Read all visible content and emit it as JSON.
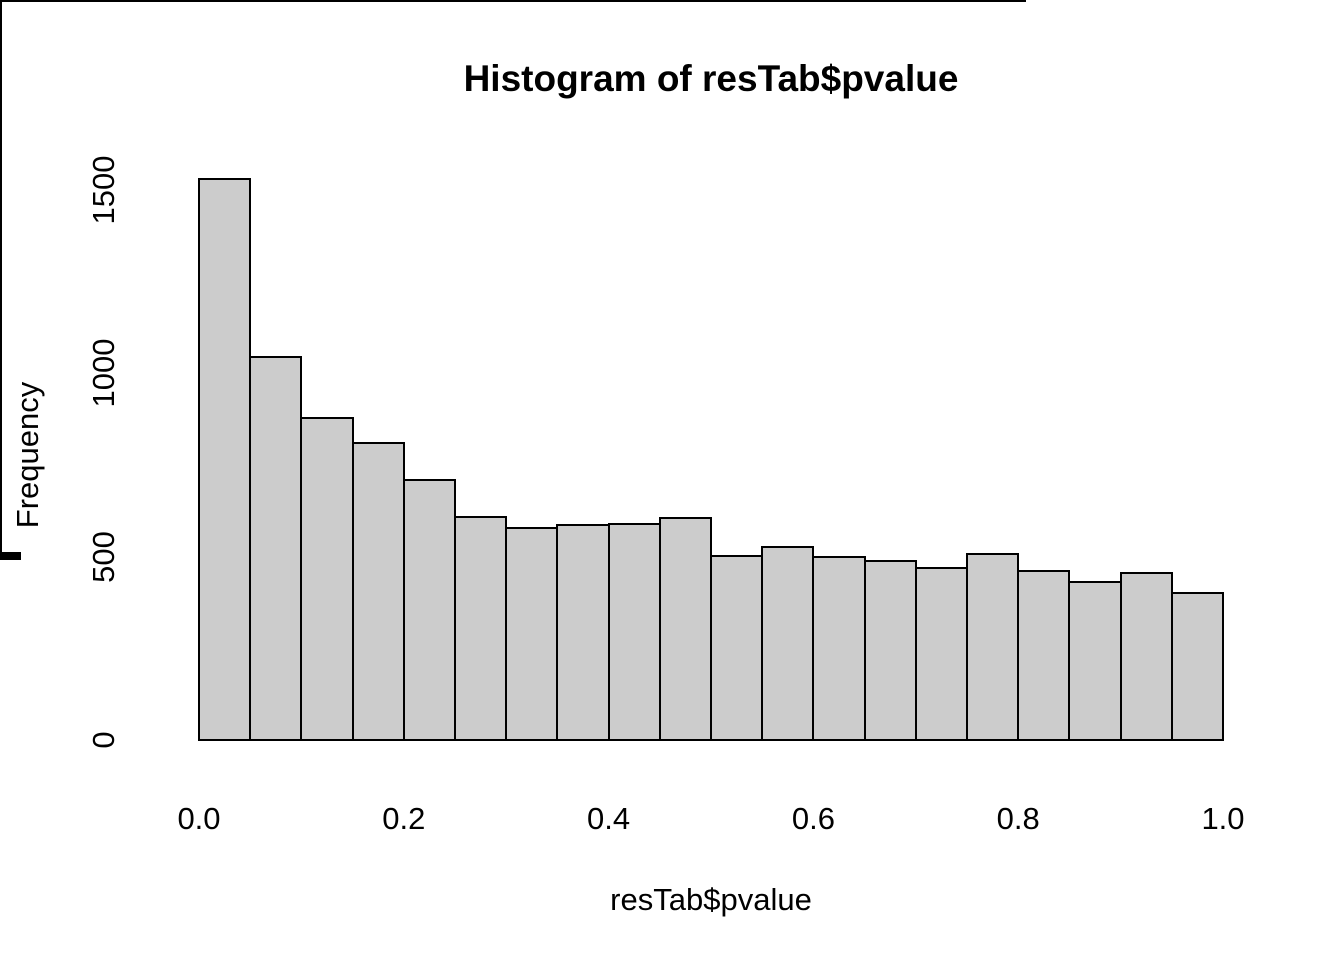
{
  "title": "Histogram of resTab$pvalue",
  "colors": {
    "background": "#ffffff",
    "bar_fill": "#cccccc",
    "bar_border": "#000000",
    "axis": "#000000",
    "text": "#000000"
  },
  "chart_data": {
    "type": "bar",
    "subtype": "histogram",
    "title": "Histogram of resTab$pvalue",
    "xlabel": "resTab$pvalue",
    "ylabel": "Frequency",
    "bin_edges": [
      0.0,
      0.05,
      0.1,
      0.15,
      0.2,
      0.25,
      0.3,
      0.35,
      0.4,
      0.45,
      0.5,
      0.55,
      0.6,
      0.65,
      0.7,
      0.75,
      0.8,
      0.85,
      0.9,
      0.95,
      1.0
    ],
    "counts": [
      1529,
      1045,
      879,
      810,
      709,
      609,
      577,
      586,
      589,
      605,
      503,
      526,
      500,
      488,
      470,
      507,
      462,
      432,
      456,
      402
    ],
    "xlim": [
      0.0,
      1.0
    ],
    "ylim": [
      0,
      1500
    ],
    "x_ticks": [
      0.0,
      0.2,
      0.4,
      0.6,
      0.8,
      1.0
    ],
    "x_tick_labels": [
      "0.0",
      "0.2",
      "0.4",
      "0.6",
      "0.8",
      "1.0"
    ],
    "y_ticks": [
      0,
      500,
      1000,
      1500
    ],
    "y_tick_labels": [
      "0",
      "500",
      "1000",
      "1500"
    ],
    "grid": false,
    "legend": null
  }
}
